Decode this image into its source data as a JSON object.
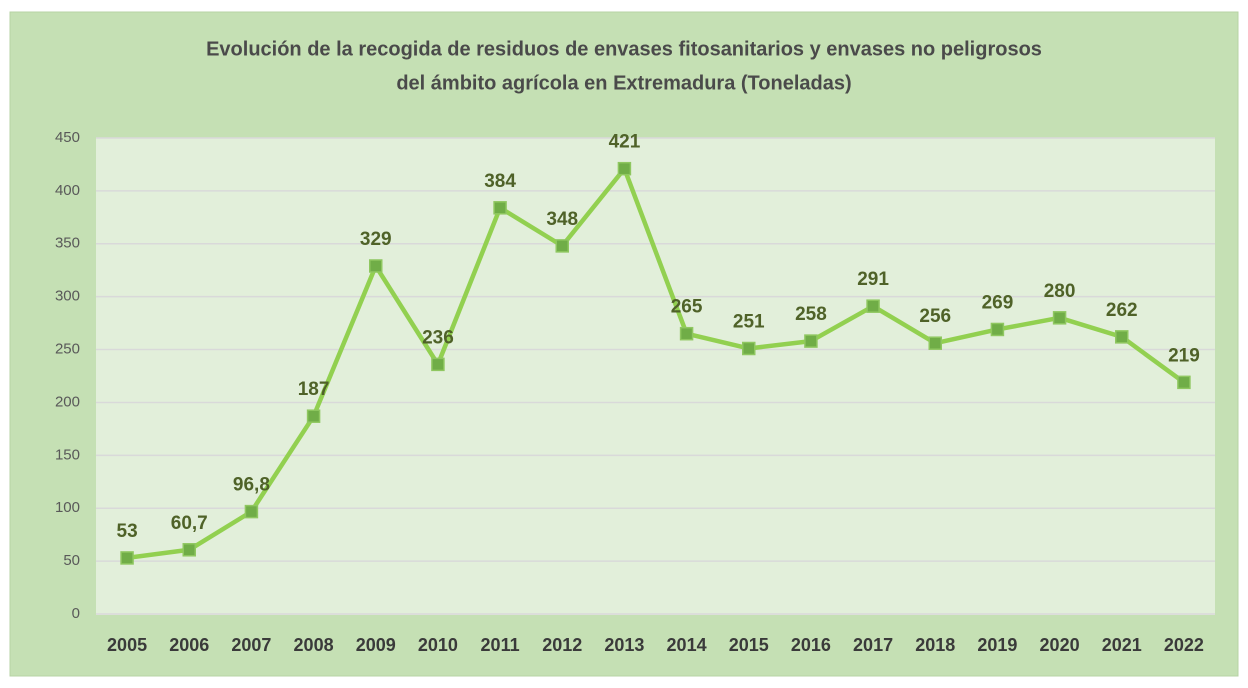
{
  "chart_data": {
    "type": "line",
    "title": [
      "Evolución de la recogida de residuos de envases fitosanitarios y envases no peligrosos",
      "del ámbito agrícola en Extremadura (Toneladas)"
    ],
    "categories": [
      "2005",
      "2006",
      "2007",
      "2008",
      "2009",
      "2010",
      "2011",
      "2012",
      "2013",
      "2014",
      "2015",
      "2016",
      "2017",
      "2018",
      "2019",
      "2020",
      "2021",
      "2022"
    ],
    "values": [
      53,
      60.7,
      96.8,
      187,
      329,
      236,
      384,
      348,
      421,
      265,
      251,
      258,
      291,
      256,
      269,
      280,
      262,
      219
    ],
    "value_labels": [
      "53",
      "60,7",
      "96,8",
      "187",
      "329",
      "236",
      "384",
      "348",
      "421",
      "265",
      "251",
      "258",
      "291",
      "256",
      "269",
      "280",
      "262",
      "219"
    ],
    "color": "#92d050",
    "marker_color": "#70ad47",
    "ylim": [
      0,
      450
    ],
    "yticks": [
      0,
      50,
      100,
      150,
      200,
      250,
      300,
      350,
      400,
      450
    ],
    "grid": true
  }
}
